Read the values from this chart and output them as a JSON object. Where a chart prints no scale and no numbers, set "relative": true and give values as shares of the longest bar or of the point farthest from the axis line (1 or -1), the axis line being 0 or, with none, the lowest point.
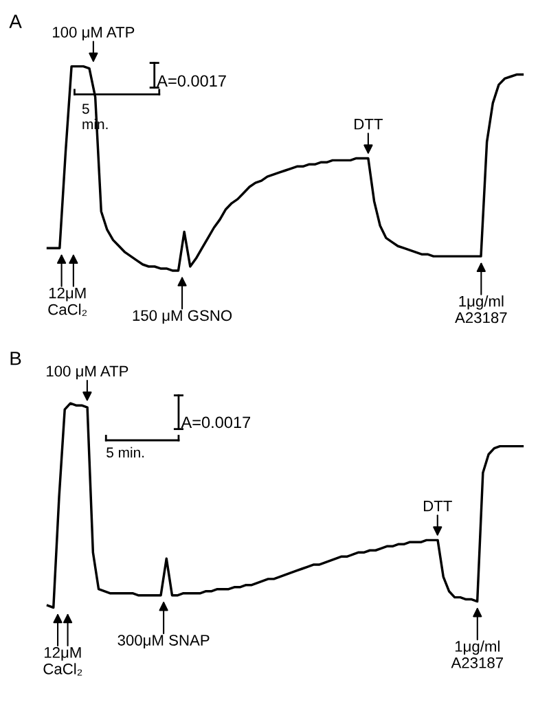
{
  "chart_data": [
    {
      "type": "line",
      "title": "A",
      "relative": true,
      "tick_labels": false,
      "marker": "none",
      "line_style": "solid",
      "categories": [
        null,
        null,
        null,
        null,
        null,
        null,
        null,
        null,
        null,
        null,
        null,
        null,
        null,
        null,
        null,
        null,
        null,
        null,
        null,
        null,
        null,
        null,
        null,
        null,
        null,
        null,
        null,
        null,
        null,
        null,
        null,
        null,
        null,
        null,
        null,
        null,
        null,
        null,
        null,
        null,
        null,
        null,
        null,
        null,
        null,
        null,
        null,
        null,
        null,
        null,
        null,
        null,
        null,
        null,
        null,
        null,
        null,
        null,
        null,
        null,
        null,
        null,
        null,
        null,
        null,
        null,
        null,
        null,
        null,
        null,
        null,
        null,
        null,
        null,
        null,
        null,
        null,
        null,
        null,
        null,
        null
      ],
      "series": [
        {
          "color": "#000000",
          "values": [
            0.11,
            0.11,
            0.11,
            0.58,
            1.0,
            1.0,
            1.0,
            0.99,
            0.85,
            0.29,
            0.2,
            0.15,
            0.12,
            0.09,
            0.07,
            0.05,
            0.03,
            0.02,
            0.02,
            0.01,
            0.01,
            0.0,
            0.0,
            0.19,
            0.02,
            0.06,
            0.11,
            0.16,
            0.21,
            0.25,
            0.3,
            0.33,
            0.35,
            0.38,
            0.41,
            0.43,
            0.44,
            0.46,
            0.47,
            0.48,
            0.49,
            0.5,
            0.51,
            0.51,
            0.52,
            0.52,
            0.53,
            0.53,
            0.54,
            0.54,
            0.54,
            0.54,
            0.55,
            0.55,
            0.55,
            0.34,
            0.22,
            0.16,
            0.14,
            0.12,
            0.11,
            0.1,
            0.09,
            0.08,
            0.08,
            0.07,
            0.07,
            0.07,
            0.07,
            0.07,
            0.07,
            0.07,
            0.07,
            0.07,
            0.63,
            0.82,
            0.91,
            0.94,
            0.95,
            0.96,
            0.96
          ]
        }
      ],
      "annotations": [
        "A=0.0017",
        "5\nmin.",
        "100 μM ATP",
        "12μM\nCaCl₂",
        "150 μM GSNO",
        "DTT",
        "1μg/ml\nA23187"
      ]
    },
    {
      "type": "line",
      "title": "B",
      "relative": true,
      "tick_labels": false,
      "marker": "none",
      "line_style": "solid",
      "categories": [
        null,
        null,
        null,
        null,
        null,
        null,
        null,
        null,
        null,
        null,
        null,
        null,
        null,
        null,
        null,
        null,
        null,
        null,
        null,
        null,
        null,
        null,
        null,
        null,
        null,
        null,
        null,
        null,
        null,
        null,
        null,
        null,
        null,
        null,
        null,
        null,
        null,
        null,
        null,
        null,
        null,
        null,
        null,
        null,
        null,
        null,
        null,
        null,
        null,
        null,
        null,
        null,
        null,
        null,
        null,
        null,
        null,
        null,
        null,
        null,
        null,
        null,
        null,
        null,
        null,
        null,
        null,
        null,
        null,
        null,
        null,
        null,
        null,
        null,
        null,
        null,
        null,
        null,
        null,
        null,
        null,
        null,
        null,
        null,
        null
      ],
      "series": [
        {
          "color": "#000000",
          "values": [
            0.01,
            0.0,
            0.54,
            0.97,
            1.0,
            0.99,
            0.99,
            0.98,
            0.27,
            0.09,
            0.08,
            0.07,
            0.07,
            0.07,
            0.07,
            0.07,
            0.06,
            0.06,
            0.06,
            0.06,
            0.06,
            0.24,
            0.06,
            0.06,
            0.07,
            0.07,
            0.07,
            0.07,
            0.08,
            0.08,
            0.09,
            0.09,
            0.09,
            0.1,
            0.1,
            0.11,
            0.11,
            0.12,
            0.13,
            0.14,
            0.14,
            0.15,
            0.16,
            0.17,
            0.18,
            0.19,
            0.2,
            0.21,
            0.21,
            0.22,
            0.23,
            0.24,
            0.25,
            0.25,
            0.26,
            0.27,
            0.27,
            0.28,
            0.28,
            0.29,
            0.3,
            0.3,
            0.31,
            0.31,
            0.32,
            0.32,
            0.32,
            0.33,
            0.33,
            0.33,
            0.15,
            0.08,
            0.05,
            0.05,
            0.04,
            0.04,
            0.03,
            0.66,
            0.75,
            0.78,
            0.79,
            0.79,
            0.79,
            0.79,
            0.79
          ]
        }
      ],
      "annotations": [
        "A=0.0017",
        "5 min.",
        "100 μM ATP",
        "12μM\nCaCl₂",
        "300μM SNAP",
        "DTT",
        "1μg/ml\nA23187"
      ]
    }
  ]
}
